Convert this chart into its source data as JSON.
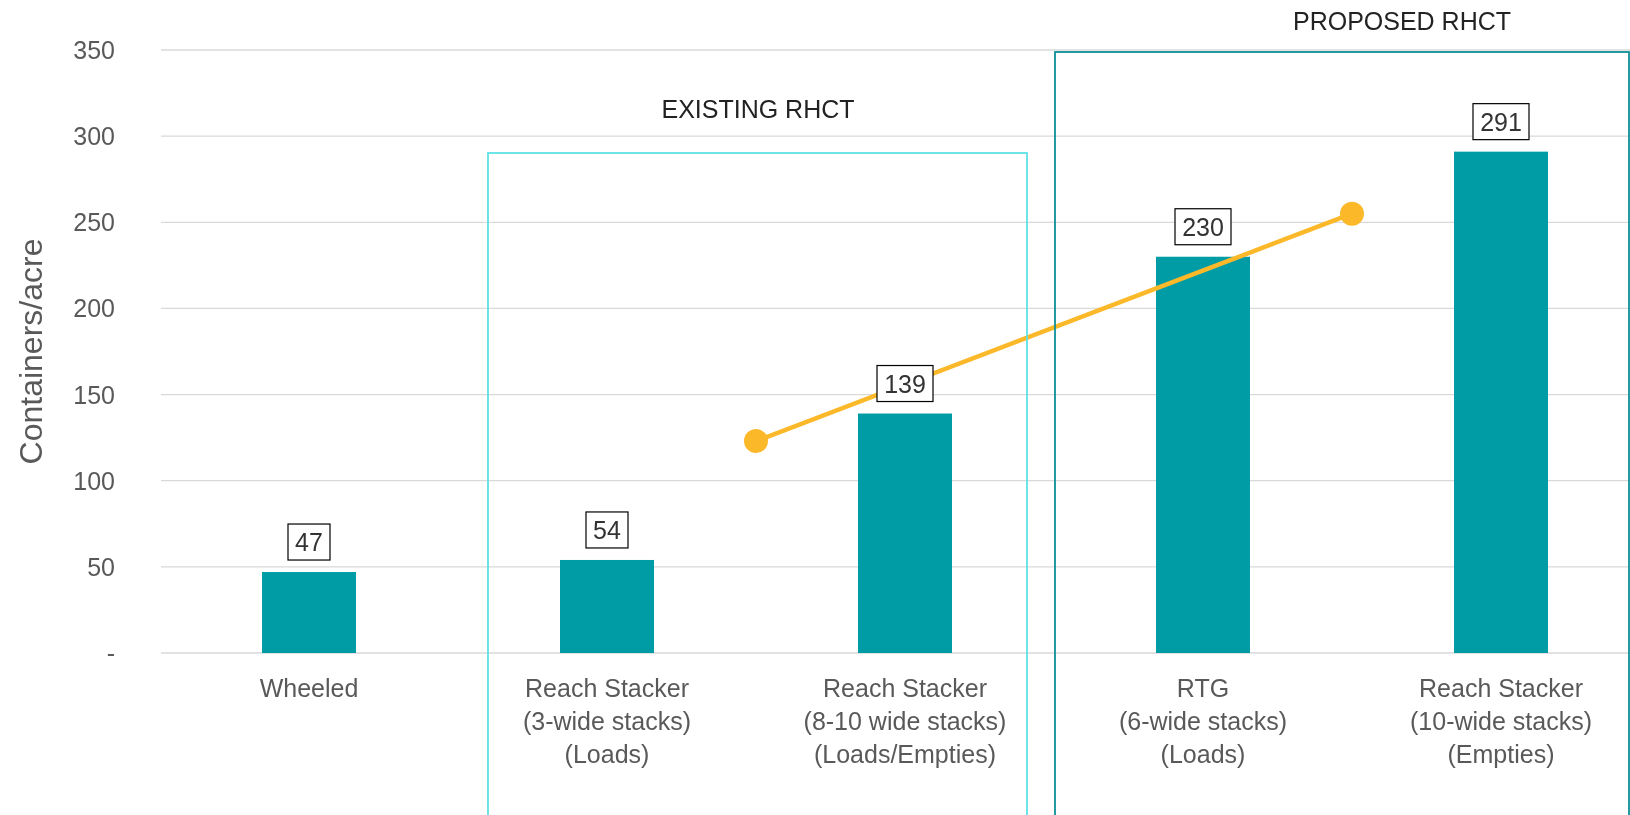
{
  "chart_data": {
    "type": "bar",
    "ylabel": "Containers/acre",
    "categories": [
      "Wheeled",
      null,
      "Reach Stacker\n(3-wide stacks)\n(Loads)",
      null,
      "Reach Stacker\n(8-10 wide stacks)\n(Loads/Empties)",
      null,
      "RTG\n(6-wide stacks)\n(Loads)",
      null,
      "Reach Stacker\n(10-wide stacks)\n(Empties)"
    ],
    "series": [
      {
        "color": "#009ca6",
        "values": [
          47,
          null,
          54,
          null,
          139,
          null,
          230,
          null,
          291
        ],
        "value_labels": [
          "47",
          null,
          "54",
          null,
          "139",
          null,
          "230",
          null,
          "291"
        ]
      },
      {
        "type": "line",
        "color": "#fbb829",
        "values": [
          null,
          null,
          null,
          123,
          null,
          null,
          null,
          255,
          null
        ],
        "marker": "circle"
      }
    ],
    "ylim": [
      0,
      350
    ],
    "yticks": [
      {
        "value": 0,
        "label": "-"
      },
      50,
      100,
      150,
      200,
      250,
      300,
      350
    ],
    "grid": "y",
    "annotations": [
      "EXISTING RHCT",
      "PROPOSED RHCT"
    ]
  }
}
